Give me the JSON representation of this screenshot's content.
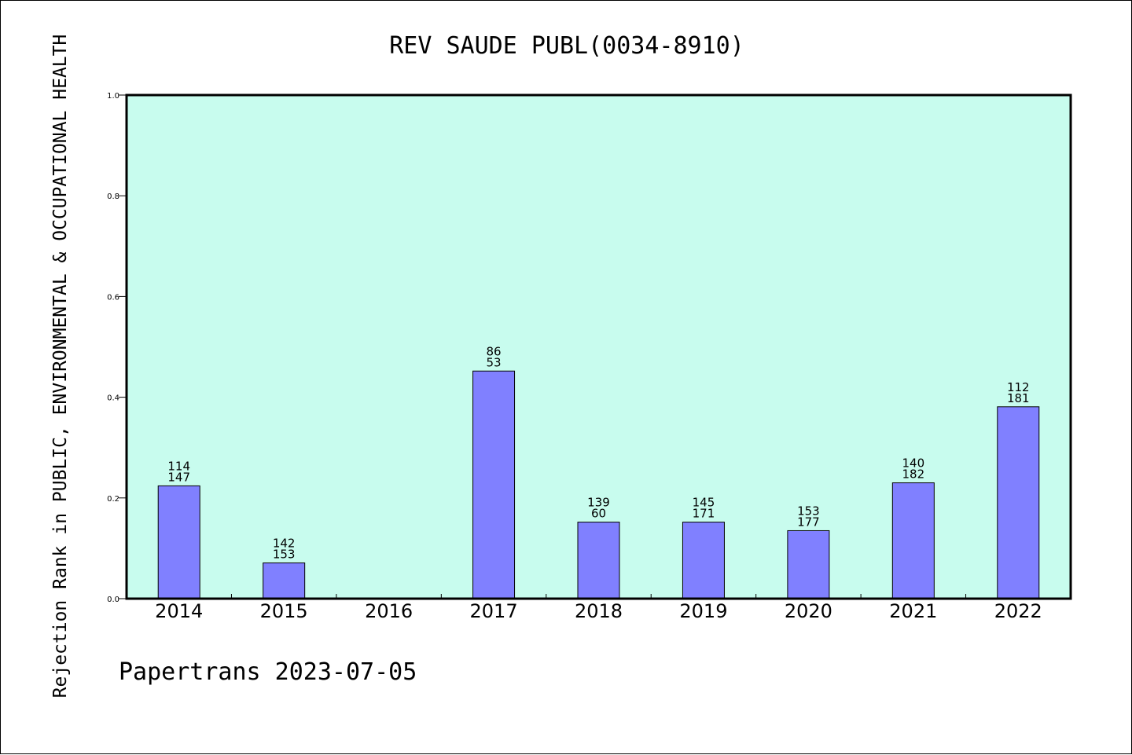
{
  "chart_data": {
    "type": "bar",
    "title": "REV SAUDE PUBL(0034-8910)",
    "ylabel": "Rejection Rank in PUBLIC, ENVIRONMENTAL & OCCUPATIONAL HEALTH",
    "footer": "Papertrans 2023-07-05",
    "ylim": [
      0,
      1.0
    ],
    "yticks": [
      "0.0",
      "0.2",
      "0.4",
      "0.6",
      "0.8",
      "1.0"
    ],
    "categories": [
      "2014",
      "2015",
      "2016",
      "2017",
      "2018",
      "2019",
      "2020",
      "2021",
      "2022"
    ],
    "values": [
      0.224,
      0.071,
      null,
      0.452,
      0.152,
      0.152,
      0.135,
      0.23,
      0.381
    ],
    "labels_top": [
      "114",
      "142",
      "",
      "86",
      "139",
      "145",
      "153",
      "140",
      "112"
    ],
    "labels_bottom": [
      "147",
      "153",
      "",
      "53",
      "60",
      "171",
      "177",
      "182",
      "181"
    ],
    "grid": false,
    "colors": {
      "plot_background": "#c8fcee",
      "bar_fill": "#8080ff",
      "bar_stroke": "#000000"
    }
  }
}
